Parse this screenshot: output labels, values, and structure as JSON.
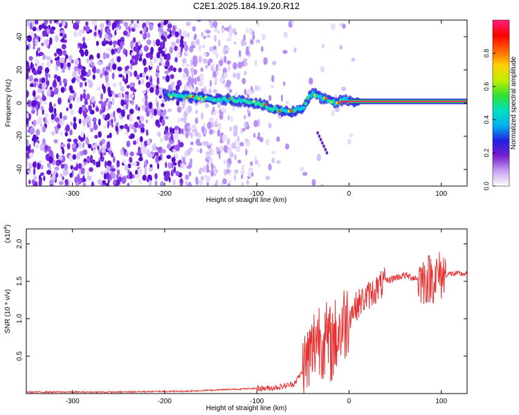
{
  "figure_title": "C2E1.2025.184.19.20.R12",
  "chart_data": [
    {
      "type": "heatmap",
      "title": "C2E1.2025.184.19.20.R12",
      "xlabel": "Height of straight line (km)",
      "ylabel": "Frequency (Hz)",
      "xlim": [
        -350,
        128
      ],
      "ylim": [
        -50,
        50
      ],
      "xticks": [
        -300,
        -200,
        -100,
        0,
        100
      ],
      "yticks": [
        -40,
        -20,
        0,
        20,
        40
      ],
      "colorbar": {
        "label": "Normalized spectral amplitude",
        "range": [
          0,
          1
        ],
        "ticks": [
          "0.0",
          "0.2",
          "0.4",
          "0.6",
          "0.8"
        ],
        "colors": [
          "#ffffff",
          "#c8a0f0",
          "#7a1fd0",
          "#2020e0",
          "#00b0f0",
          "#00e0c0",
          "#30e030",
          "#c0f000",
          "#ffd000",
          "#ff6000",
          "#ff0000",
          "#ff1f7f"
        ]
      },
      "signal_track": {
        "x": [
          -200,
          -190,
          -180,
          -170,
          -160,
          -150,
          -140,
          -130,
          -120,
          -110,
          -100,
          -90,
          -80,
          -70,
          -60,
          -50,
          -45,
          -40,
          -35,
          -30,
          -25,
          -20,
          -15,
          -10,
          -5,
          0,
          10,
          50,
          100,
          128
        ],
        "y": [
          5,
          4.5,
          4,
          3.5,
          3,
          2.5,
          2,
          2.2,
          1.5,
          1,
          0,
          -2,
          -4,
          -5,
          -5,
          -3,
          2,
          6,
          5,
          3,
          2,
          1,
          0,
          1,
          2,
          1,
          1,
          1,
          1,
          1
        ]
      },
      "spur": {
        "x": [
          -34,
          -24
        ],
        "y": [
          -18,
          -30
        ]
      }
    },
    {
      "type": "line",
      "xlabel": "Height of straight line (km)",
      "ylabel": "SNR (10 * v/v)",
      "y_scale_label": "(x10",
      "y_scale_exponent": "4",
      "xlim": [
        -350,
        128
      ],
      "ylim": [
        0,
        2.2
      ],
      "xticks": [
        -300,
        -200,
        -100,
        0,
        100
      ],
      "yticks": [
        "0.5",
        "1.0",
        "1.5",
        "2.0"
      ],
      "color": "#e83030",
      "series": [
        {
          "x": [
            -350,
            -300,
            -250,
            -200,
            -180,
            -160,
            -140,
            -120,
            -100,
            -90,
            -80,
            -70,
            -60,
            -50,
            -45,
            -40,
            -35,
            -30,
            -25,
            -20,
            -15,
            -10,
            -5,
            0,
            10,
            20,
            30,
            40,
            50,
            60,
            70,
            80,
            90,
            100,
            110,
            128
          ],
          "y": [
            0.02,
            0.02,
            0.02,
            0.03,
            0.03,
            0.04,
            0.05,
            0.06,
            0.07,
            0.07,
            0.08,
            0.1,
            0.13,
            0.3,
            0.45,
            0.55,
            0.8,
            0.75,
            0.7,
            0.65,
            0.75,
            0.85,
            0.95,
            1.05,
            1.2,
            1.3,
            1.4,
            1.5,
            1.55,
            1.58,
            1.55,
            1.52,
            1.55,
            1.58,
            1.6,
            1.6
          ]
        }
      ]
    }
  ]
}
